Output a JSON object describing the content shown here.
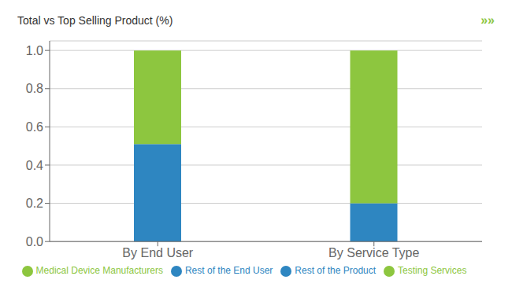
{
  "chart_data": {
    "type": "bar",
    "title": "Total vs Top Selling Product (%)",
    "annotations": [
      {
        "text": "»»",
        "color": "#8DC63F"
      }
    ],
    "categories": [
      "By End User",
      "By Service Type"
    ],
    "series": [
      {
        "name": "Rest of the Product",
        "color": "#2E86C1",
        "values": [
          null,
          0.2
        ]
      },
      {
        "name": "Testing Services",
        "color": "#8DC63F",
        "values": [
          null,
          0.8
        ]
      },
      {
        "name": "Rest of the End User",
        "color": "#2E86C1",
        "values": [
          0.51,
          null
        ]
      },
      {
        "name": "Medical Device Manufacturers",
        "color": "#8DC63F",
        "values": [
          0.49,
          null
        ]
      }
    ],
    "stacked": true,
    "ylim": [
      0.0,
      1.05
    ],
    "yticks": [
      {
        "value": 0,
        "label": "0.0"
      },
      0.2,
      0.4,
      0.6,
      0.8,
      {
        "value": 1,
        "label": "1.0"
      }
    ],
    "grid": true,
    "legend": "bottom"
  }
}
